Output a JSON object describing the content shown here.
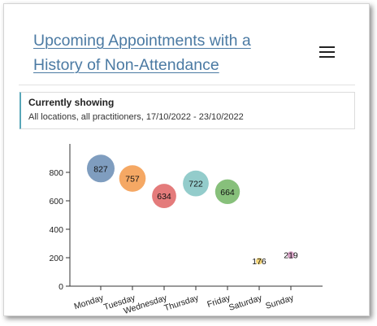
{
  "header": {
    "title": "Upcoming Appointments with a History of Non-Attendance",
    "menu_icon": "hamburger-menu-icon"
  },
  "filter": {
    "heading": "Currently showing",
    "description": "All locations, all practitioners, 17/10/2022 - 23/10/2022"
  },
  "chart_data": {
    "type": "scatter",
    "categories": [
      "Monday",
      "Tuesday",
      "Wednesday",
      "Thursday",
      "Friday",
      "Saturday",
      "Sunday"
    ],
    "values": [
      827,
      757,
      634,
      722,
      664,
      176,
      219
    ],
    "colors": [
      "#7f9dbf",
      "#f5a864",
      "#e47b7b",
      "#93cccb",
      "#87c07b",
      "#f3d57a",
      "#d7a3c6"
    ],
    "yticks": [
      0,
      200,
      400,
      600,
      800
    ],
    "ylim": [
      0,
      1000
    ],
    "xlabel": "",
    "ylabel": "",
    "grid": false,
    "legend": "none"
  }
}
